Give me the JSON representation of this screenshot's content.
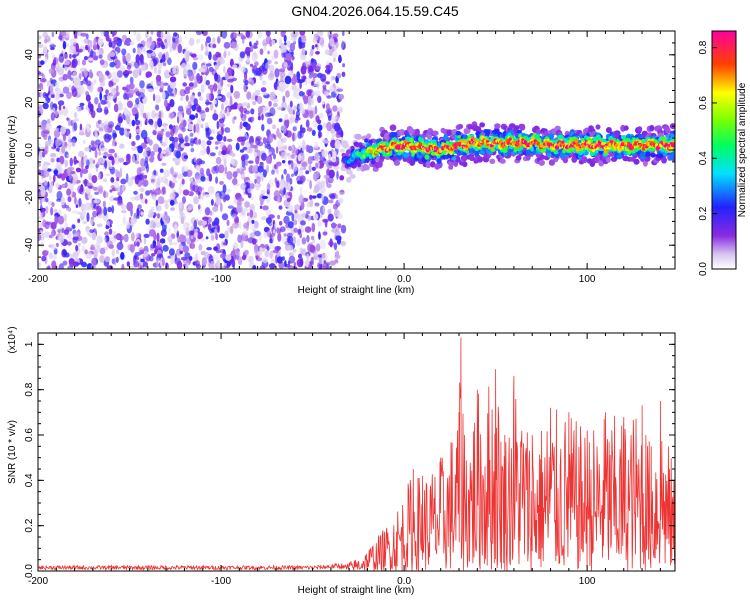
{
  "title": "GN04.2026.064.15.59.C45",
  "chart_data": [
    {
      "type": "heatmap",
      "xlabel": "Height of straight line (km)",
      "ylabel": "Frequency (Hz)",
      "xlim": [
        -200,
        148
      ],
      "ylim": [
        -50,
        50
      ],
      "xticks": [
        -200,
        -100,
        0,
        100
      ],
      "yticks": [
        -40,
        -20,
        0,
        20,
        40
      ],
      "grid": false,
      "colorbar": {
        "label": "Normalized spectral amplitude",
        "range": [
          0.0,
          0.86
        ],
        "ticks": [
          0.0,
          0.2,
          0.4,
          0.6,
          0.8
        ],
        "colormap": "rainbow (white-purple-blue-cyan-green-yellow-red-magenta)"
      },
      "noise_region": {
        "x": [
          -200,
          -33
        ],
        "amplitude": "low (~0.05-0.2)",
        "spans_full_frequency_range": true
      },
      "signal_trace": {
        "x": [
          -33,
          -25,
          -20,
          -10,
          0,
          10,
          20,
          30,
          40,
          50,
          60,
          70,
          80,
          90,
          100,
          110,
          120,
          130,
          140,
          148
        ],
        "y": [
          -5,
          -2,
          -1,
          1,
          2,
          1,
          0,
          2,
          3,
          3,
          3,
          3,
          2,
          2,
          2,
          2,
          2,
          2,
          2,
          2
        ],
        "peak_amplitude": 0.85
      }
    },
    {
      "type": "line",
      "xlabel": "Height of straight line (km)",
      "ylabel": "SNR (10 * v/v)",
      "y_multiplier": "(x10⁴)",
      "xlim": [
        -200,
        148
      ],
      "ylim": [
        0,
        1.05
      ],
      "xticks": [
        -200,
        -100,
        0,
        100
      ],
      "yticks": [
        0.0,
        0.2,
        0.4,
        0.6,
        0.8,
        1.0
      ],
      "grid": false,
      "color": "#ee3333",
      "series": [
        {
          "x": [
            -200,
            -150,
            -100,
            -50,
            -33,
            -25,
            -20,
            -10,
            0,
            5,
            10,
            20,
            30,
            31,
            33,
            40,
            50,
            55,
            60,
            70,
            80,
            90,
            100,
            110,
            120,
            130,
            135,
            140,
            148
          ],
          "y": [
            0.02,
            0.02,
            0.02,
            0.02,
            0.03,
            0.06,
            0.1,
            0.2,
            0.35,
            0.45,
            0.42,
            0.5,
            0.7,
            1.03,
            0.6,
            0.8,
            0.89,
            0.6,
            0.86,
            0.6,
            0.72,
            0.7,
            0.62,
            0.7,
            0.68,
            0.73,
            0.55,
            0.75,
            0.42
          ]
        }
      ]
    }
  ]
}
